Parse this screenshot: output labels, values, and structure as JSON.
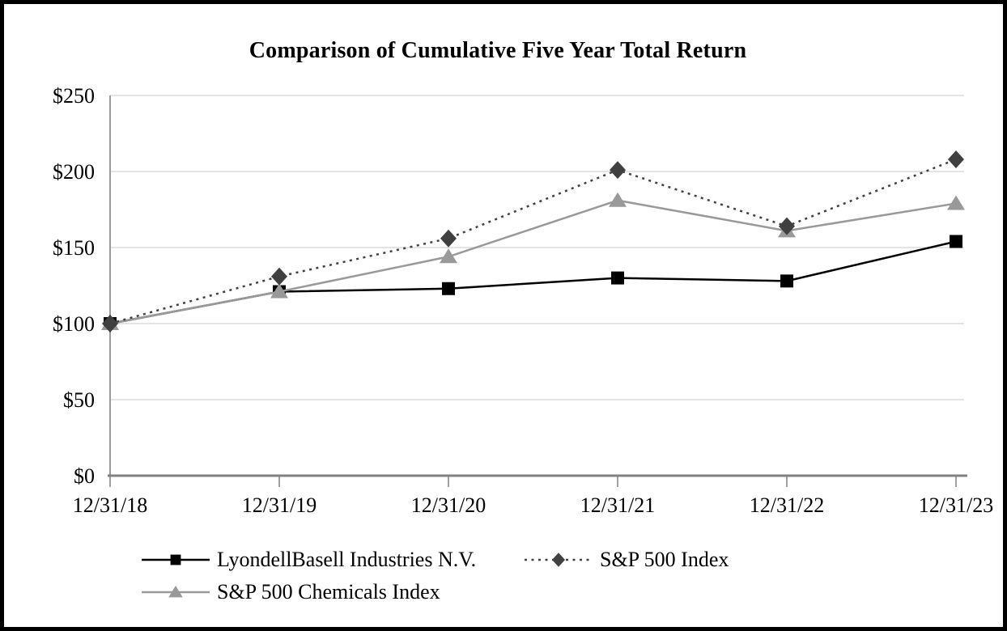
{
  "frame": {
    "background": "#ffffff",
    "border_color": "#000000"
  },
  "chart_data": {
    "type": "line",
    "title": "Comparison of Cumulative Five Year Total Return",
    "x": [
      "12/31/18",
      "12/31/19",
      "12/31/20",
      "12/31/21",
      "12/31/22",
      "12/31/23"
    ],
    "y_ticks": [
      "$0",
      "$50",
      "$100",
      "$150",
      "$200",
      "$250"
    ],
    "ylim": [
      0,
      250
    ],
    "y_tick_step": 50,
    "grid": "horizontal",
    "legend_position": "bottom",
    "series": [
      {
        "name": "LyondellBasell Industries N.V.",
        "marker": "square",
        "line_style": "solid",
        "color": "#000000",
        "values": [
          100,
          121,
          123,
          130,
          128,
          154
        ]
      },
      {
        "name": "S&P 500 Index",
        "marker": "diamond",
        "line_style": "dotted",
        "color": "#404040",
        "values": [
          100,
          131,
          156,
          201,
          164,
          208
        ]
      },
      {
        "name": "S&P 500 Chemicals Index",
        "marker": "triangle",
        "line_style": "solid",
        "color": "#999999",
        "values": [
          100,
          121,
          144,
          181,
          161,
          179
        ]
      }
    ],
    "colors": {
      "gridline": "#dcdcdc",
      "y_axis": "#999999",
      "x_axis": "#808080",
      "text": "#000000"
    }
  }
}
